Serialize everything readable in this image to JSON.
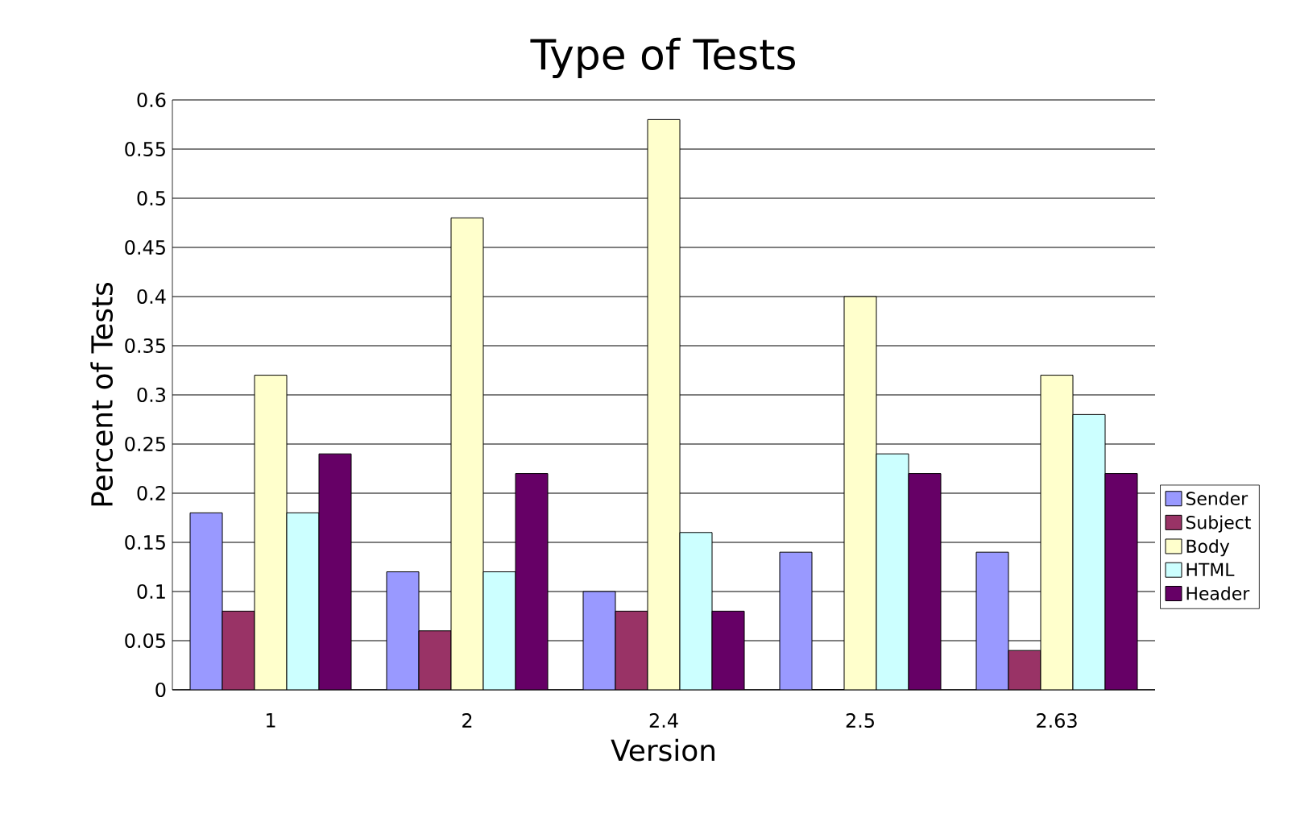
{
  "chart_data": {
    "type": "bar",
    "title": "Type of Tests",
    "xlabel": "Version",
    "ylabel": "Percent of Tests",
    "categories": [
      "1",
      "2",
      "2.4",
      "2.5",
      "2.63"
    ],
    "series": [
      {
        "name": "Sender",
        "color": "#9999ff",
        "values": [
          0.18,
          0.12,
          0.1,
          0.14,
          0.14
        ]
      },
      {
        "name": "Subject",
        "color": "#993366",
        "values": [
          0.08,
          0.06,
          0.08,
          0.0,
          0.04
        ]
      },
      {
        "name": "Body",
        "color": "#ffffcc",
        "values": [
          0.32,
          0.48,
          0.58,
          0.4,
          0.32
        ]
      },
      {
        "name": "HTML",
        "color": "#ccffff",
        "values": [
          0.18,
          0.12,
          0.16,
          0.24,
          0.28
        ]
      },
      {
        "name": "Header",
        "color": "#660066",
        "values": [
          0.24,
          0.22,
          0.08,
          0.22,
          0.22
        ]
      }
    ],
    "ylim": [
      0,
      0.6
    ],
    "yticks": [
      0,
      0.05,
      0.1,
      0.15,
      0.2,
      0.25,
      0.3,
      0.35,
      0.4,
      0.45,
      0.5,
      0.55,
      0.6
    ],
    "grid": "y",
    "legend": "right"
  }
}
